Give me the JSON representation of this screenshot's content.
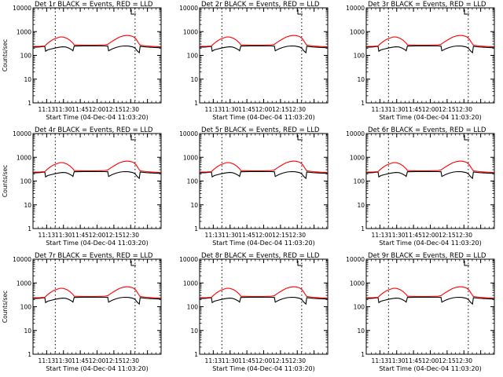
{
  "chart_data": [
    {
      "type": "line",
      "title": "Det 1r BLACK = Events, RED = LLD",
      "ylabel": "Counts/sec",
      "xlabel": "Start Time (04-Dec-04 11:03:20)",
      "show_ylabel": true,
      "show_xlabel": true
    },
    {
      "type": "line",
      "title": "Det 2r BLACK = Events, RED = LLD",
      "ylabel": "",
      "xlabel": "Start Time (04-Dec-04 11:03:20)",
      "show_ylabel": false,
      "show_xlabel": true
    },
    {
      "type": "line",
      "title": "Det 3r BLACK = Events, RED = LLD",
      "ylabel": "",
      "xlabel": "Start Time (04-Dec-04 11:03:20)",
      "show_ylabel": false,
      "show_xlabel": true
    },
    {
      "type": "line",
      "title": "Det 4r BLACK = Events, RED = LLD",
      "ylabel": "Counts/sec",
      "xlabel": "Start Time (04-Dec-04 11:03:20)",
      "show_ylabel": true,
      "show_xlabel": true
    },
    {
      "type": "line",
      "title": "Det 5r BLACK = Events, RED = LLD",
      "ylabel": "",
      "xlabel": "Start Time (04-Dec-04 11:03:20)",
      "show_ylabel": false,
      "show_xlabel": true
    },
    {
      "type": "line",
      "title": "Det 6r BLACK = Events, RED = LLD",
      "ylabel": "",
      "xlabel": "Start Time (04-Dec-04 11:03:20)",
      "show_ylabel": false,
      "show_xlabel": true
    },
    {
      "type": "line",
      "title": "Det 7r BLACK = Events, RED = LLD",
      "ylabel": "Counts/sec",
      "xlabel": "Start Time (04-Dec-04 11:03:20)",
      "show_ylabel": true,
      "show_xlabel": true
    },
    {
      "type": "line",
      "title": "Det 8r BLACK = Events, RED = LLD",
      "ylabel": "",
      "xlabel": "Start Time (04-Dec-04 11:03:20)",
      "show_ylabel": false,
      "show_xlabel": true
    },
    {
      "type": "line",
      "title": "Det 9r BLACK = Events, RED = LLD",
      "ylabel": "",
      "xlabel": "Start Time (04-Dec-04 11:03:20)",
      "show_ylabel": false,
      "show_xlabel": true
    }
  ],
  "shared": {
    "y_scale": "log",
    "ylim": [
      1,
      10000
    ],
    "y_ticks": [
      {
        "v": 1,
        "label": "1"
      },
      {
        "v": 10,
        "label": "10"
      },
      {
        "v": 100,
        "label": "100"
      },
      {
        "v": 1000,
        "label": "1000"
      },
      {
        "v": 10000,
        "label": "10000"
      }
    ],
    "xlim_minutes": [
      8.0,
      38.5
    ],
    "x_ticks": [
      {
        "v": 13,
        "label": "11:13"
      },
      {
        "v": 30,
        "label": "11:30"
      },
      {
        "v": 45,
        "label": "11:45"
      },
      {
        "v": 60,
        "label": "12:00"
      },
      {
        "v": 75,
        "label": "12:15"
      },
      {
        "v": 90,
        "label": "12:30"
      }
    ],
    "tick_positions": [
      11.25,
      15.25,
      19.25,
      23.25,
      27.25,
      31.25,
      35.25
    ],
    "dotted_lines": [
      13.3,
      32.3
    ],
    "colors": {
      "events": "#000000",
      "lld": "#ff0000"
    },
    "series": [
      {
        "name": "Events",
        "color": "#000000",
        "points": [
          [
            8.0,
            220
          ],
          [
            9.5,
            225
          ],
          [
            10.8,
            240
          ],
          [
            11.0,
            150
          ],
          [
            11.5,
            170
          ],
          [
            12.5,
            190
          ],
          [
            13.5,
            210
          ],
          [
            14.3,
            220
          ],
          [
            15.0,
            230
          ],
          [
            15.8,
            225
          ],
          [
            16.5,
            205
          ],
          [
            17.3,
            170
          ],
          [
            17.5,
            155
          ],
          [
            17.8,
            245
          ],
          [
            20.0,
            250
          ],
          [
            23.0,
            250
          ],
          [
            25.0,
            250
          ],
          [
            25.8,
            245
          ],
          [
            26.0,
            155
          ],
          [
            26.8,
            185
          ],
          [
            27.8,
            215
          ],
          [
            28.8,
            240
          ],
          [
            29.8,
            250
          ],
          [
            30.8,
            245
          ],
          [
            31.8,
            225
          ],
          [
            32.3,
            200
          ],
          [
            32.9,
            150
          ],
          [
            33.3,
            130
          ],
          [
            33.5,
            240
          ],
          [
            35.0,
            225
          ],
          [
            37.0,
            215
          ],
          [
            38.5,
            210
          ]
        ]
      },
      {
        "name": "LLD",
        "color": "#ff0000",
        "points": [
          [
            8.0,
            240
          ],
          [
            9.5,
            240
          ],
          [
            10.8,
            250
          ],
          [
            11.3,
            300
          ],
          [
            12.0,
            380
          ],
          [
            12.8,
            470
          ],
          [
            13.8,
            550
          ],
          [
            14.5,
            600
          ],
          [
            15.2,
            590
          ],
          [
            16.0,
            530
          ],
          [
            16.8,
            430
          ],
          [
            17.5,
            330
          ],
          [
            17.8,
            275
          ],
          [
            20.0,
            270
          ],
          [
            23.0,
            270
          ],
          [
            25.0,
            275
          ],
          [
            25.8,
            290
          ],
          [
            26.5,
            360
          ],
          [
            27.5,
            460
          ],
          [
            28.5,
            580
          ],
          [
            29.5,
            660
          ],
          [
            30.3,
            690
          ],
          [
            31.0,
            680
          ],
          [
            31.8,
            620
          ],
          [
            32.5,
            500
          ],
          [
            33.0,
            360
          ],
          [
            33.5,
            270
          ],
          [
            35.0,
            250
          ],
          [
            37.0,
            235
          ],
          [
            38.5,
            230
          ]
        ]
      }
    ]
  }
}
